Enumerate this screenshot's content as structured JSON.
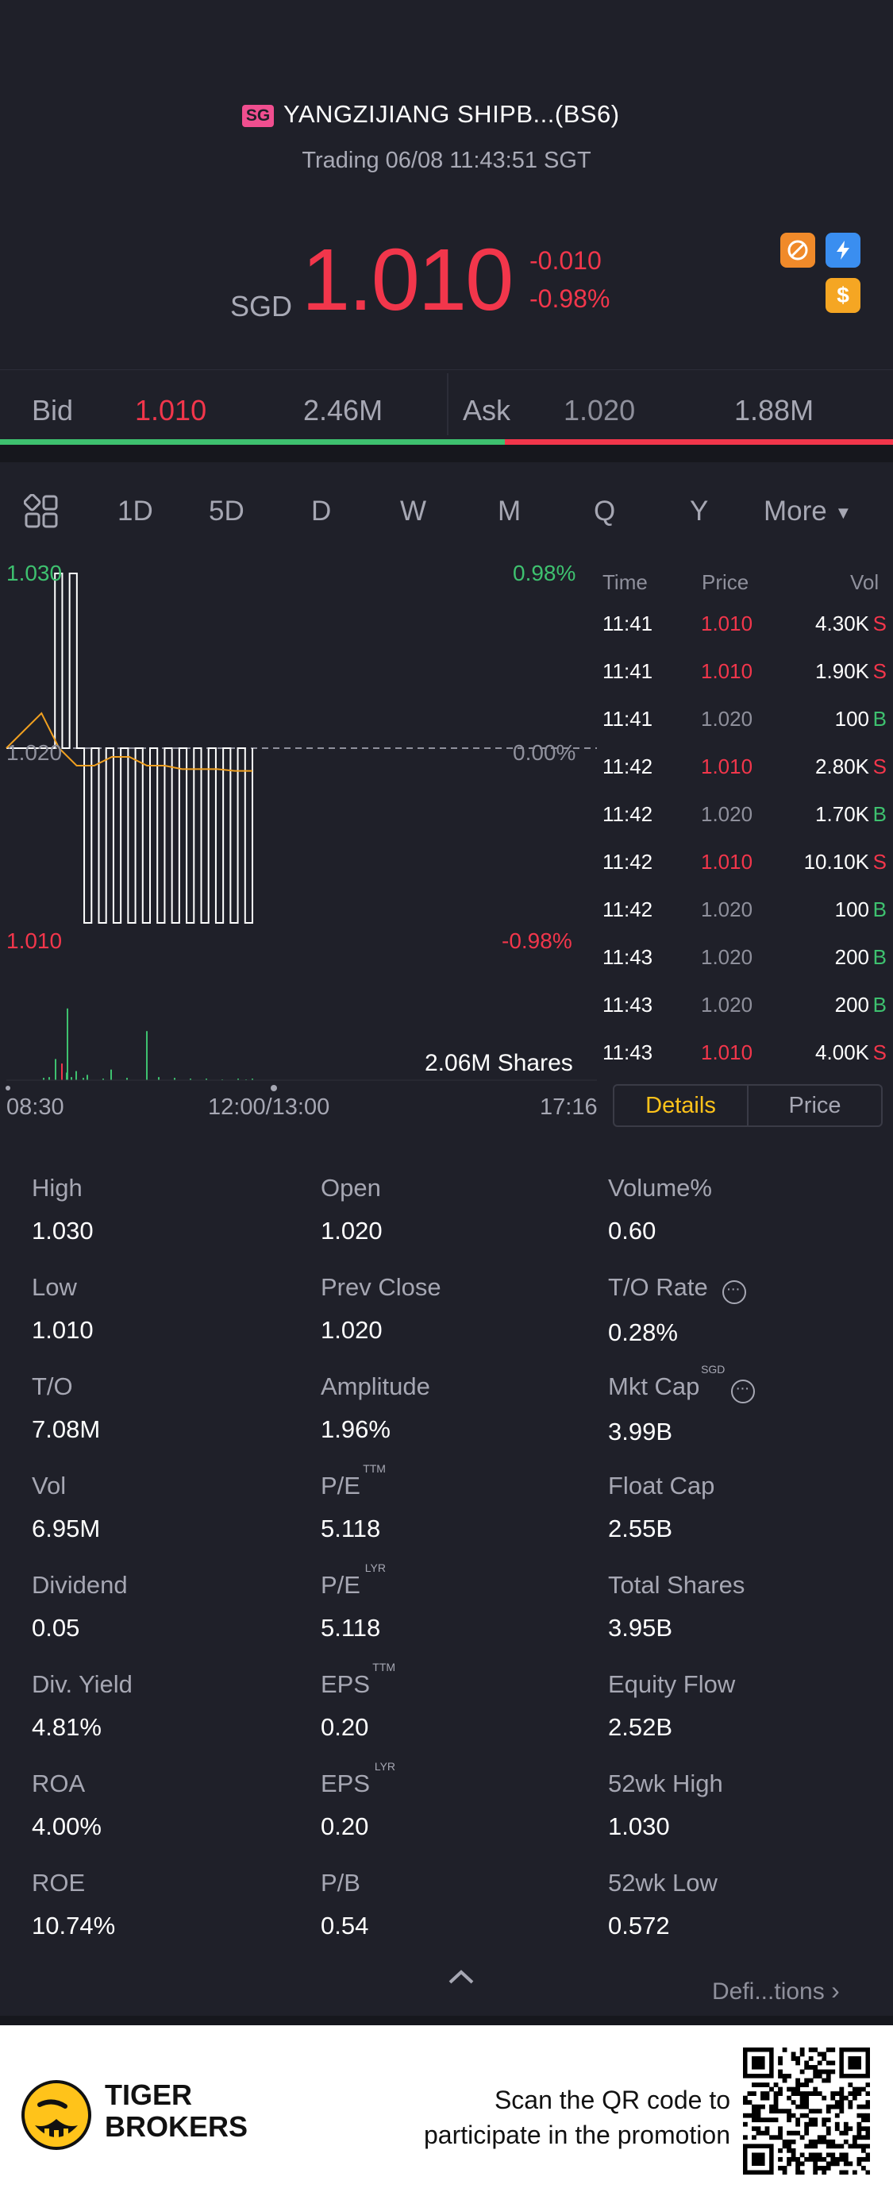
{
  "header": {
    "market_badge": "SG",
    "title": "YANGZIJIANG SHIPB...(BS6)",
    "status": "Trading 06/08 11:43:51 SGT",
    "currency": "SGD",
    "price": "1.010",
    "change": "-0.010",
    "change_pct": "-0.98%",
    "icons": [
      "no-entry-icon",
      "flash-icon",
      "dollar-icon"
    ]
  },
  "quote": {
    "bid_label": "Bid",
    "bid_price": "1.010",
    "bid_size": "2.46M",
    "ask_label": "Ask",
    "ask_price": "1.020",
    "ask_size": "1.88M",
    "bid_ratio": 0.565
  },
  "tabs": {
    "items": [
      "1D",
      "5D",
      "D",
      "W",
      "M",
      "Q",
      "Y"
    ],
    "active": "1D",
    "more": "More"
  },
  "chart_data": {
    "type": "line",
    "high_label": "1.030",
    "high_pct": "0.98%",
    "mid_label": "1.020",
    "mid_pct": "0.00%",
    "low_label": "1.010",
    "low_pct": "-0.98%",
    "volume_label": "2.06M Shares",
    "x_ticks": [
      "08:30",
      "12:00/13:00",
      "17:16"
    ],
    "ylim": [
      1.01,
      1.03
    ],
    "prev_close": 1.02,
    "price_series": [
      1.02,
      1.03,
      1.02,
      1.03,
      1.02,
      1.01,
      1.02,
      1.01,
      1.02,
      1.01,
      1.02,
      1.01,
      1.02,
      1.01,
      1.02,
      1.01,
      1.02,
      1.01,
      1.02,
      1.01,
      1.02,
      1.01,
      1.02,
      1.01,
      1.02,
      1.01,
      1.02,
      1.01,
      1.02
    ],
    "avg_series": [
      1.02,
      1.021,
      1.022,
      1.02,
      1.019,
      1.019,
      1.0195,
      1.0195,
      1.019,
      1.019,
      1.0188,
      1.0188,
      1.0188,
      1.0187,
      1.0187
    ]
  },
  "trades": {
    "headers": {
      "time": "Time",
      "price": "Price",
      "vol": "Vol"
    },
    "rows": [
      {
        "time": "11:41",
        "price": "1.010",
        "vol": "4.30K",
        "side": "S"
      },
      {
        "time": "11:41",
        "price": "1.010",
        "vol": "1.90K",
        "side": "S"
      },
      {
        "time": "11:41",
        "price": "1.020",
        "vol": "100",
        "side": "B"
      },
      {
        "time": "11:42",
        "price": "1.010",
        "vol": "2.80K",
        "side": "S"
      },
      {
        "time": "11:42",
        "price": "1.020",
        "vol": "1.70K",
        "side": "B"
      },
      {
        "time": "11:42",
        "price": "1.010",
        "vol": "10.10K",
        "side": "S"
      },
      {
        "time": "11:42",
        "price": "1.020",
        "vol": "100",
        "side": "B"
      },
      {
        "time": "11:43",
        "price": "1.020",
        "vol": "200",
        "side": "B"
      },
      {
        "time": "11:43",
        "price": "1.020",
        "vol": "200",
        "side": "B"
      },
      {
        "time": "11:43",
        "price": "1.010",
        "vol": "4.00K",
        "side": "S"
      }
    ],
    "segment": {
      "details": "Details",
      "price": "Price"
    }
  },
  "stats": [
    {
      "label": "High",
      "value": "1.030"
    },
    {
      "label": "Open",
      "value": "1.020"
    },
    {
      "label": "Volume%",
      "value": "0.60"
    },
    {
      "label": "Low",
      "value": "1.010"
    },
    {
      "label": "Prev Close",
      "value": "1.020"
    },
    {
      "label": "T/O Rate",
      "value": "0.28%",
      "more": true
    },
    {
      "label": "T/O",
      "value": "7.08M"
    },
    {
      "label": "Amplitude",
      "value": "1.96%"
    },
    {
      "label": "Mkt Cap",
      "value": "3.99B",
      "sup": "SGD",
      "more": true
    },
    {
      "label": "Vol",
      "value": "6.95M"
    },
    {
      "label": "P/E",
      "value": "5.118",
      "sup": "TTM"
    },
    {
      "label": "Float Cap",
      "value": "2.55B"
    },
    {
      "label": "Dividend",
      "value": "0.05"
    },
    {
      "label": "P/E",
      "value": "5.118",
      "sup": "LYR"
    },
    {
      "label": "Total Shares",
      "value": "3.95B"
    },
    {
      "label": "Div. Yield",
      "value": "4.81%"
    },
    {
      "label": "EPS",
      "value": "0.20",
      "sup": "TTM"
    },
    {
      "label": "Equity Flow",
      "value": "2.52B"
    },
    {
      "label": "ROA",
      "value": "4.00%"
    },
    {
      "label": "EPS",
      "value": "0.20",
      "sup": "LYR"
    },
    {
      "label": "52wk High",
      "value": "1.030"
    },
    {
      "label": "ROE",
      "value": "10.74%"
    },
    {
      "label": "P/B",
      "value": "0.54"
    },
    {
      "label": "52wk Low",
      "value": "0.572"
    }
  ],
  "bottom": {
    "definitions": "Defi...tions"
  },
  "footer": {
    "brand_line1": "TIGER",
    "brand_line2": "BROKERS",
    "promo_line1": "Scan the QR code to",
    "promo_line2": "participate in the promotion"
  },
  "colors": {
    "up": "#3ec16f",
    "down": "#f2364b",
    "accent": "#ffc31a",
    "background": "#1f2029"
  }
}
